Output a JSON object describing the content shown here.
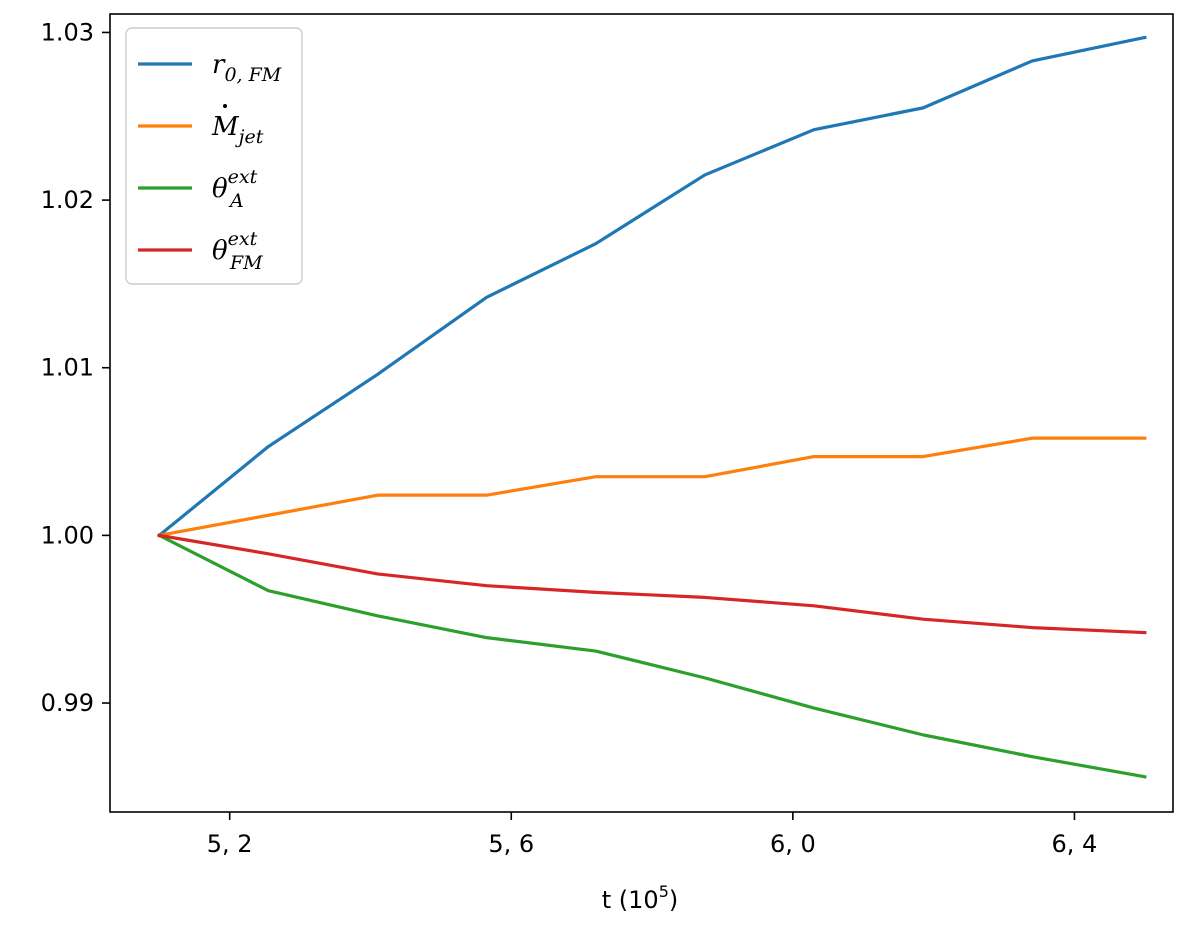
{
  "chart_data": {
    "type": "line",
    "title": "",
    "xlabel": "t (10",
    "xlabel_sup": "5",
    "xlabel_tail": ")",
    "ylabel": "",
    "xlim": [
      5.03,
      6.54
    ],
    "ylim": [
      0.9835,
      1.0311
    ],
    "xticks": [
      5.2,
      5.6,
      6.0,
      6.4
    ],
    "xtick_labels": [
      "5, 2",
      "5, 6",
      "6, 0",
      "6, 4"
    ],
    "yticks": [
      0.99,
      1.0,
      1.01,
      1.02,
      1.03
    ],
    "ytick_labels": [
      "0.99",
      "1.00",
      "1.01",
      "1.02",
      "1.03"
    ],
    "grid": false,
    "legend_position": "top-left",
    "x": [
      5.1,
      5.255,
      5.41,
      5.565,
      5.72,
      5.875,
      6.03,
      6.185,
      6.34,
      6.5
    ],
    "series": [
      {
        "name": "r0,FM",
        "label_main": "r",
        "label_sub": "0, FM",
        "label_sup": "",
        "label_dot": false,
        "color": "#1f77b4",
        "values": [
          1.0,
          1.0053,
          1.0096,
          1.0142,
          1.0174,
          1.0215,
          1.0242,
          1.0255,
          1.0283,
          1.0297
        ]
      },
      {
        "name": "Mjet",
        "label_main": "M",
        "label_sub": "jet",
        "label_sup": "",
        "label_dot": true,
        "color": "#ff7f0e",
        "values": [
          1.0,
          1.0012,
          1.0024,
          1.0024,
          1.0035,
          1.0035,
          1.0047,
          1.0047,
          1.0058,
          1.0058
        ]
      },
      {
        "name": "θA ext",
        "label_main": "θ",
        "label_sub": "A",
        "label_sup": "ext",
        "label_dot": false,
        "color": "#2ca02c",
        "values": [
          1.0,
          0.9967,
          0.9952,
          0.9939,
          0.9931,
          0.9915,
          0.9897,
          0.9881,
          0.9868,
          0.9856
        ]
      },
      {
        "name": "θFM ext",
        "label_main": "θ",
        "label_sub": "FM",
        "label_sup": "ext",
        "label_dot": false,
        "color": "#d62728",
        "values": [
          1.0,
          0.9989,
          0.9977,
          0.997,
          0.9966,
          0.9963,
          0.9958,
          0.995,
          0.9945,
          0.9942
        ]
      }
    ]
  }
}
